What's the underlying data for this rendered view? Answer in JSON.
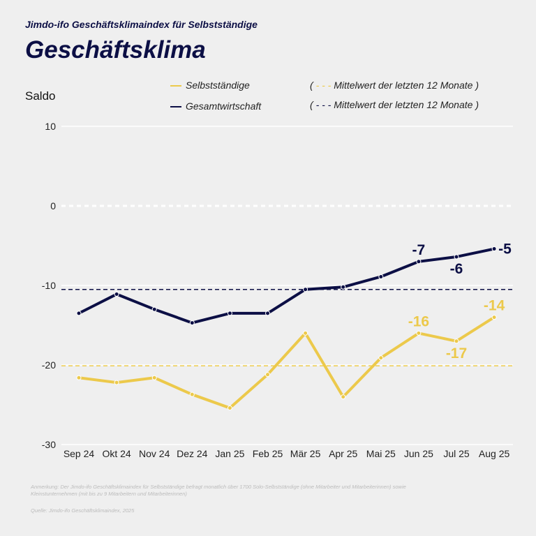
{
  "header": {
    "supertitle": "Jimdo-ifo Geschäftsklimaindex für Selbstständige",
    "title": "Geschäftsklima"
  },
  "legend": {
    "selbst": "Selbstständige",
    "gesamt": "Gesamtwirtschaft",
    "mean_selbst": "Mittelwert der letzten 12 Monate",
    "mean_gesamt": "Mittelwert der letzten 12 Monate",
    "open": "(",
    "close": ")"
  },
  "footer": {
    "note": "Anmerkung: Der Jimdo-ifo Geschäftsklimaindex für Selbstständige befragt monatlich über 1700 Solo-Selbstständige (ohne Mitarbeiter und Mitarbeiterinnen) sowie Kleinstunternehmen (mit bis zu 9 Mitarbeitern und Mitarbeiterinnen)",
    "source": "Quelle: Jimdo-ifo Geschäftsklimaindex, 2025"
  },
  "chart_data": {
    "type": "line",
    "ylabel": "Saldo",
    "ylim": [
      -30,
      10
    ],
    "yticks": [
      10,
      0,
      -10,
      -20,
      -30
    ],
    "categories": [
      "Sep 24",
      "Okt 24",
      "Nov 24",
      "Dez 24",
      "Jan 25",
      "Feb 25",
      "Mär 25",
      "Apr 25",
      "Mai 25",
      "Jun 25",
      "Jul 25",
      "Aug 25"
    ],
    "series": [
      {
        "name": "Selbstständige",
        "color": "#ecc94b",
        "values": [
          -21.6,
          -22.2,
          -21.6,
          -23.7,
          -25.4,
          -21.2,
          -16.0,
          -24.0,
          -19.1,
          -16,
          -17,
          -14
        ],
        "mean": -20.1,
        "labels": [
          {
            "index": 9,
            "text": "-16",
            "pos": "above"
          },
          {
            "index": 10,
            "text": "-17",
            "pos": "below"
          },
          {
            "index": 11,
            "text": "-14",
            "pos": "above"
          }
        ]
      },
      {
        "name": "Gesamtwirtschaft",
        "color": "#0c0f45",
        "values": [
          -13.5,
          -11.1,
          -13.0,
          -14.7,
          -13.5,
          -13.5,
          -10.5,
          -10.2,
          -8.9,
          -7,
          -6.4,
          -5.4
        ],
        "mean": -10.5,
        "labels": [
          {
            "index": 9,
            "text": "-7",
            "pos": "above"
          },
          {
            "index": 10,
            "text": "-6",
            "pos": "below"
          },
          {
            "index": 11,
            "text": "-5",
            "pos": "right"
          }
        ]
      }
    ],
    "zero_line": "dashed white",
    "grid": true
  }
}
